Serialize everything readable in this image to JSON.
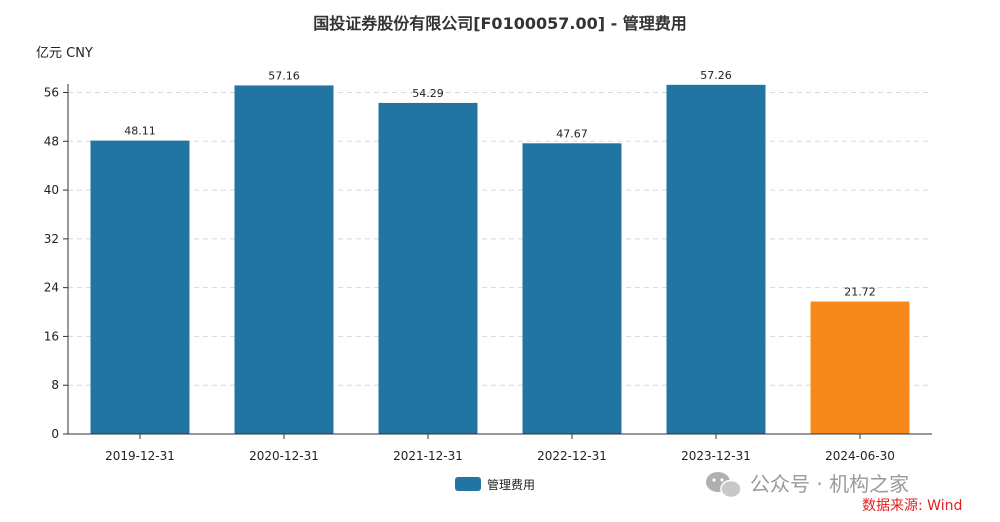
{
  "chart_data": {
    "type": "bar",
    "title": "国投证券股份有限公司[F0100057.00] - 管理费用",
    "unit_label": "亿元  CNY",
    "categories": [
      "2019-12-31",
      "2020-12-31",
      "2021-12-31",
      "2022-12-31",
      "2023-12-31",
      "2024-06-30"
    ],
    "values": [
      48.11,
      57.16,
      54.29,
      47.67,
      57.26,
      21.72
    ],
    "value_labels": [
      "48.11",
      "57.16",
      "54.29",
      "47.67",
      "57.26",
      "21.72"
    ],
    "bar_colors": [
      "#2275a2",
      "#2275a2",
      "#2275a2",
      "#2275a2",
      "#2275a2",
      "#f5891a"
    ],
    "series": [
      {
        "name": "管理费用",
        "color": "#2275a2"
      }
    ],
    "ylim": [
      0,
      60
    ],
    "yticks": [
      0,
      8,
      16,
      24,
      32,
      40,
      48,
      56
    ],
    "grid": true,
    "legend_position": "bottom-center"
  },
  "watermark": {
    "text": "公众号 · 机构之家",
    "icon": "wechat-icon"
  },
  "source_note": "数据来源: Wind"
}
